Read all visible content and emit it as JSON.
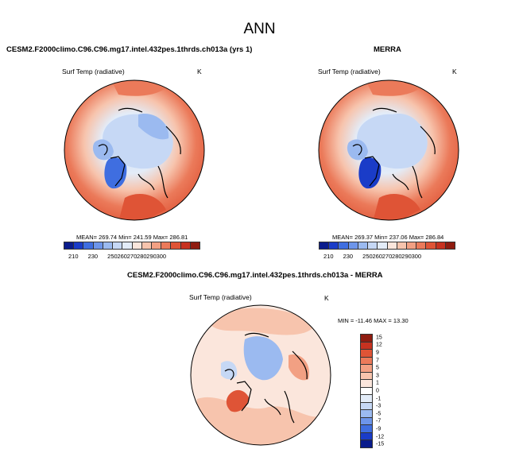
{
  "figure": {
    "title": "ANN"
  },
  "panels": {
    "model": {
      "title": "CESM2.F2000climo.C96.C96.mg17.intel.432pes.1thrds.ch013a (yrs 1)",
      "variable": "Surf Temp (radiative)",
      "units": "K",
      "stats": "MEAN= 269.74   Min= 241.59   Max= 286.81"
    },
    "obs": {
      "title": "MERRA",
      "variable": "Surf Temp (radiative)",
      "units": "K",
      "stats": "MEAN= 269.37   Min= 237.06   Max= 286.84"
    },
    "diff": {
      "title": "CESM2.F2000climo.C96.C96.mg17.intel.432pes.1thrds.ch013a - MERRA",
      "variable": "Surf Temp (radiative)",
      "units": "K",
      "stats": "MIN = -11.46  MAX =  13.30"
    }
  },
  "colorbars": {
    "abs": {
      "colors": [
        "#0a1c8c",
        "#1a3cc8",
        "#3f6ee0",
        "#6d95ea",
        "#9bbaf0",
        "#c6d8f5",
        "#e3ecf8",
        "#fbe6dc",
        "#f7c4ad",
        "#f2a083",
        "#eb7a5a",
        "#df5436",
        "#c73220",
        "#8f1c10"
      ],
      "tick_labels": [
        "210",
        "230",
        "250",
        "260",
        "270",
        "280",
        "290",
        "300"
      ],
      "tick_boundaries": [
        1,
        3,
        5,
        6,
        7,
        8,
        9,
        10
      ]
    },
    "diff": {
      "colors": [
        "#8f1c10",
        "#c73220",
        "#df5436",
        "#eb7a5a",
        "#f2a083",
        "#f7c4ad",
        "#fbe6dc",
        "#ffffff",
        "#e3ecf8",
        "#c6d8f5",
        "#9bbaf0",
        "#6d95ea",
        "#3f6ee0",
        "#1a3cc8",
        "#0a1c8c"
      ],
      "tick_labels": [
        "15",
        "12",
        "9",
        "7",
        "5",
        "3",
        "1",
        "0",
        "-1",
        "-3",
        "-5",
        "-7",
        "-9",
        "-12",
        "-15"
      ]
    }
  }
}
